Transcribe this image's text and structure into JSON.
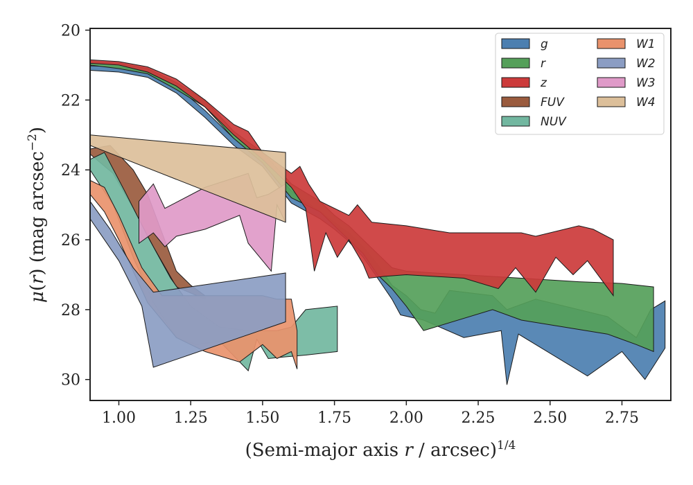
{
  "chart_data": {
    "type": "area",
    "xlabel_pre": "(Semi-major axis ",
    "xlabel_var": "r",
    "xlabel_post": " / arcsec)",
    "xlabel_sup": "1/4",
    "ylabel_mu": "μ",
    "ylabel_mid": "(",
    "ylabel_var": "r",
    "ylabel_post": ") (mag arcsec",
    "ylabel_sup": "−2",
    "ylabel_close": ")",
    "xlim": [
      0.9,
      2.92
    ],
    "ylim": [
      30.6,
      19.95
    ],
    "yinverted": true,
    "xticks": [
      1.0,
      1.25,
      1.5,
      1.75,
      2.0,
      2.25,
      2.5,
      2.75
    ],
    "xtick_labels": [
      "1.00",
      "1.25",
      "1.50",
      "1.75",
      "2.00",
      "2.25",
      "2.50",
      "2.75"
    ],
    "yticks": [
      20,
      22,
      24,
      26,
      28,
      30
    ],
    "ytick_labels": [
      "20",
      "22",
      "24",
      "26",
      "28",
      "30"
    ],
    "legend_position": "top-right",
    "legend_columns": 2,
    "series": [
      {
        "name": "g",
        "color": "#4c7fb0",
        "upper": [
          [
            0.9,
            21.02
          ],
          [
            1.0,
            21.05
          ],
          [
            1.1,
            21.2
          ],
          [
            1.2,
            21.6
          ],
          [
            1.3,
            22.3
          ],
          [
            1.4,
            23.1
          ],
          [
            1.5,
            23.7
          ],
          [
            1.6,
            24.6
          ],
          [
            1.7,
            25.2
          ],
          [
            1.75,
            25.5
          ],
          [
            1.8,
            25.8
          ],
          [
            1.85,
            26.2
          ],
          [
            1.9,
            26.7
          ],
          [
            1.95,
            27.3
          ],
          [
            2.0,
            27.6
          ],
          [
            2.05,
            28.0
          ],
          [
            2.1,
            28.1
          ],
          [
            2.15,
            27.45
          ],
          [
            2.3,
            27.6
          ],
          [
            2.35,
            28.0
          ],
          [
            2.45,
            27.7
          ],
          [
            2.6,
            28.0
          ],
          [
            2.7,
            28.2
          ],
          [
            2.8,
            28.8
          ],
          [
            2.85,
            28.0
          ],
          [
            2.9,
            27.75
          ]
        ],
        "lower": [
          [
            2.9,
            29.1
          ],
          [
            2.83,
            30.0
          ],
          [
            2.75,
            29.2
          ],
          [
            2.63,
            29.9
          ],
          [
            2.45,
            29.0
          ],
          [
            2.39,
            28.7
          ],
          [
            2.35,
            30.15
          ],
          [
            2.33,
            28.6
          ],
          [
            2.2,
            28.8
          ],
          [
            2.06,
            28.3
          ],
          [
            1.98,
            28.15
          ],
          [
            1.95,
            27.7
          ],
          [
            1.9,
            27.1
          ],
          [
            1.85,
            26.5
          ],
          [
            1.8,
            26.05
          ],
          [
            1.75,
            25.7
          ],
          [
            1.7,
            25.4
          ],
          [
            1.6,
            24.95
          ],
          [
            1.5,
            23.9
          ],
          [
            1.4,
            23.3
          ],
          [
            1.3,
            22.5
          ],
          [
            1.2,
            21.8
          ],
          [
            1.1,
            21.35
          ],
          [
            1.0,
            21.2
          ],
          [
            0.9,
            21.15
          ]
        ]
      },
      {
        "name": "r",
        "color": "#55a05a",
        "upper": [
          [
            0.9,
            20.9
          ],
          [
            1.0,
            20.95
          ],
          [
            1.1,
            21.1
          ],
          [
            1.2,
            21.5
          ],
          [
            1.3,
            22.0
          ],
          [
            1.4,
            22.9
          ],
          [
            1.5,
            23.5
          ],
          [
            1.6,
            24.4
          ],
          [
            1.7,
            24.9
          ],
          [
            1.75,
            25.3
          ],
          [
            1.8,
            25.6
          ],
          [
            1.85,
            26.0
          ],
          [
            1.9,
            26.4
          ],
          [
            1.95,
            26.8
          ],
          [
            2.0,
            26.9
          ],
          [
            2.2,
            27.0
          ],
          [
            2.4,
            27.1
          ],
          [
            2.6,
            27.2
          ],
          [
            2.75,
            27.25
          ],
          [
            2.86,
            27.35
          ]
        ],
        "lower": [
          [
            2.86,
            29.2
          ],
          [
            2.8,
            29.0
          ],
          [
            2.7,
            28.7
          ],
          [
            2.55,
            28.5
          ],
          [
            2.4,
            28.3
          ],
          [
            2.3,
            28.0
          ],
          [
            2.1,
            28.5
          ],
          [
            2.06,
            28.6
          ],
          [
            2.0,
            27.9
          ],
          [
            1.95,
            27.4
          ],
          [
            1.9,
            27.0
          ],
          [
            1.85,
            26.4
          ],
          [
            1.8,
            26.0
          ],
          [
            1.75,
            25.6
          ],
          [
            1.7,
            25.2
          ],
          [
            1.6,
            24.8
          ],
          [
            1.5,
            23.8
          ],
          [
            1.4,
            23.1
          ],
          [
            1.3,
            22.2
          ],
          [
            1.2,
            21.7
          ],
          [
            1.1,
            21.25
          ],
          [
            1.0,
            21.1
          ],
          [
            0.9,
            21.0
          ]
        ]
      },
      {
        "name": "z",
        "color": "#cc3b3b",
        "upper": [
          [
            0.9,
            20.85
          ],
          [
            1.0,
            20.9
          ],
          [
            1.1,
            21.05
          ],
          [
            1.2,
            21.4
          ],
          [
            1.3,
            22.0
          ],
          [
            1.4,
            22.7
          ],
          [
            1.45,
            22.9
          ],
          [
            1.5,
            23.5
          ],
          [
            1.6,
            24.1
          ],
          [
            1.63,
            23.9
          ],
          [
            1.66,
            24.4
          ],
          [
            1.7,
            24.9
          ],
          [
            1.75,
            25.1
          ],
          [
            1.8,
            25.3
          ],
          [
            1.83,
            25.0
          ],
          [
            1.88,
            25.5
          ],
          [
            2.0,
            25.6
          ],
          [
            2.15,
            25.8
          ],
          [
            2.3,
            25.8
          ],
          [
            2.4,
            25.8
          ],
          [
            2.45,
            25.9
          ],
          [
            2.6,
            25.6
          ],
          [
            2.65,
            25.7
          ],
          [
            2.72,
            26.0
          ]
        ],
        "lower": [
          [
            2.72,
            27.6
          ],
          [
            2.63,
            26.6
          ],
          [
            2.58,
            27.0
          ],
          [
            2.52,
            26.5
          ],
          [
            2.45,
            27.5
          ],
          [
            2.38,
            26.8
          ],
          [
            2.32,
            27.4
          ],
          [
            2.2,
            27.1
          ],
          [
            2.0,
            27.0
          ],
          [
            1.92,
            27.05
          ],
          [
            1.87,
            27.1
          ],
          [
            1.85,
            26.7
          ],
          [
            1.8,
            26.0
          ],
          [
            1.76,
            26.5
          ],
          [
            1.72,
            25.8
          ],
          [
            1.68,
            26.9
          ],
          [
            1.65,
            25.1
          ],
          [
            1.6,
            24.5
          ],
          [
            1.5,
            23.7
          ],
          [
            1.4,
            23.0
          ],
          [
            1.3,
            22.2
          ],
          [
            1.2,
            21.6
          ],
          [
            1.1,
            21.2
          ],
          [
            1.0,
            21.0
          ],
          [
            0.9,
            20.95
          ]
        ]
      },
      {
        "name": "FUV",
        "color": "#9a5b3e",
        "upper": [
          [
            0.9,
            23.4
          ],
          [
            0.97,
            23.3
          ],
          [
            1.05,
            24.0
          ],
          [
            1.1,
            24.7
          ],
          [
            1.2,
            26.9
          ],
          [
            1.25,
            27.3
          ],
          [
            1.3,
            27.6
          ]
        ],
        "lower": [
          [
            1.3,
            27.7
          ],
          [
            1.2,
            27.35
          ],
          [
            1.12,
            26.2
          ],
          [
            1.05,
            25.1
          ],
          [
            0.98,
            24.1
          ],
          [
            0.9,
            23.55
          ]
        ]
      },
      {
        "name": "NUV",
        "color": "#72b7a0",
        "upper": [
          [
            0.9,
            23.7
          ],
          [
            0.95,
            23.5
          ],
          [
            1.02,
            24.6
          ],
          [
            1.1,
            25.9
          ],
          [
            1.18,
            27.1
          ],
          [
            1.25,
            27.9
          ],
          [
            1.35,
            28.5
          ],
          [
            1.45,
            28.6
          ],
          [
            1.55,
            28.6
          ],
          [
            1.6,
            28.5
          ],
          [
            1.65,
            28.0
          ],
          [
            1.76,
            27.9
          ]
        ],
        "lower": [
          [
            1.76,
            29.2
          ],
          [
            1.65,
            29.3
          ],
          [
            1.58,
            29.35
          ],
          [
            1.52,
            29.4
          ],
          [
            1.48,
            28.85
          ],
          [
            1.45,
            29.75
          ],
          [
            1.35,
            28.9
          ],
          [
            1.27,
            29.0
          ],
          [
            1.2,
            28.8
          ],
          [
            1.12,
            27.8
          ],
          [
            1.05,
            26.5
          ],
          [
            0.98,
            25.0
          ],
          [
            0.9,
            24.0
          ]
        ]
      },
      {
        "name": "W1",
        "color": "#e9926c",
        "upper": [
          [
            0.9,
            24.3
          ],
          [
            0.95,
            24.5
          ],
          [
            1.0,
            25.3
          ],
          [
            1.08,
            26.8
          ],
          [
            1.15,
            27.6
          ],
          [
            1.5,
            27.6
          ],
          [
            1.55,
            27.7
          ],
          [
            1.6,
            27.7
          ],
          [
            1.62,
            28.6
          ]
        ],
        "lower": [
          [
            1.62,
            29.7
          ],
          [
            1.6,
            29.2
          ],
          [
            1.55,
            29.4
          ],
          [
            1.5,
            29.0
          ],
          [
            1.42,
            29.5
          ],
          [
            1.3,
            29.2
          ],
          [
            1.2,
            28.8
          ],
          [
            1.1,
            27.8
          ],
          [
            1.0,
            26.0
          ],
          [
            0.95,
            25.2
          ],
          [
            0.9,
            24.7
          ]
        ]
      },
      {
        "name": "W2",
        "color": "#8b9dc3",
        "upper": [
          [
            0.9,
            24.9
          ],
          [
            0.97,
            25.7
          ],
          [
            1.05,
            26.8
          ],
          [
            1.12,
            27.5
          ],
          [
            1.58,
            26.95
          ]
        ],
        "lower": [
          [
            1.58,
            28.35
          ],
          [
            1.12,
            29.65
          ],
          [
            1.08,
            27.9
          ],
          [
            1.0,
            26.6
          ],
          [
            0.9,
            25.4
          ]
        ]
      },
      {
        "name": "W3",
        "color": "#df9ac8",
        "upper": [
          [
            1.07,
            24.9
          ],
          [
            1.12,
            24.4
          ],
          [
            1.16,
            25.1
          ],
          [
            1.3,
            24.5
          ],
          [
            1.45,
            24.1
          ],
          [
            1.48,
            24.8
          ],
          [
            1.52,
            24.7
          ],
          [
            1.58,
            24.4
          ]
        ],
        "lower": [
          [
            1.58,
            25.5
          ],
          [
            1.55,
            25.0
          ],
          [
            1.53,
            26.9
          ],
          [
            1.45,
            26.1
          ],
          [
            1.42,
            25.3
          ],
          [
            1.3,
            25.7
          ],
          [
            1.2,
            25.9
          ],
          [
            1.16,
            26.2
          ],
          [
            1.12,
            25.8
          ],
          [
            1.07,
            26.1
          ]
        ]
      },
      {
        "name": "W4",
        "color": "#dcbf9a",
        "upper": [
          [
            0.9,
            23.0
          ],
          [
            1.58,
            23.5
          ]
        ],
        "lower": [
          [
            1.58,
            25.5
          ],
          [
            0.9,
            23.3
          ]
        ]
      }
    ]
  }
}
